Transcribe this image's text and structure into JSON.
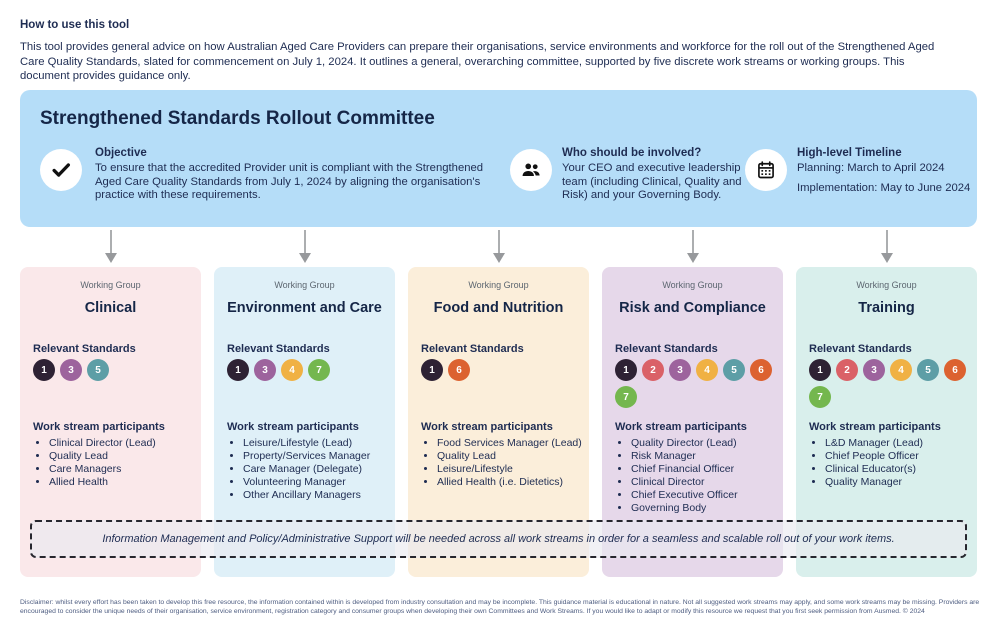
{
  "intro": {
    "title": "How to use this tool",
    "body": "This tool provides general advice on how Australian Aged Care Providers can prepare their organisations, service environments and workforce for the roll out of the Strengthened Aged Care Quality Standards, slated for commencement on July 1, 2024. It outlines a general, overarching committee, supported by five discrete work streams or working groups. This document provides guidance only."
  },
  "committee": {
    "title": "Strengthened Standards Rollout Committee",
    "features": [
      {
        "icon": "check-icon",
        "heading": "Objective",
        "body": "To ensure that the accredited Provider unit is compliant with the Strengthened Aged Care Quality Standards from July 1, 2024 by aligning the organisation's practice with these requirements."
      },
      {
        "icon": "people-icon",
        "heading": "Who should be involved?",
        "body": "Your CEO and executive leadership team (including Clinical, Quality and Risk) and your Governing Body."
      },
      {
        "icon": "calendar-icon",
        "heading": "High-level Timeline",
        "lines": [
          "Planning: March to April 2024",
          "Implementation: May to June 2024"
        ]
      }
    ]
  },
  "working_groups": {
    "group_label": "Working Group",
    "standards_heading": "Relevant Standards",
    "participants_heading": "Work stream participants",
    "standard_colors": {
      "1": "#2e2234",
      "2": "#da6167",
      "3": "#9d639d",
      "4": "#f0b144",
      "5": "#5d9ea6",
      "6": "#dc6230",
      "7": "#74b74e"
    },
    "groups": [
      {
        "title": "Clinical",
        "bg": "#fae8ea",
        "standards": [
          1,
          3,
          5
        ],
        "participants": [
          "Clinical Director (Lead)",
          "Quality Lead",
          "Care Managers",
          "Allied Health"
        ]
      },
      {
        "title": "Environment and Care",
        "bg": "#dff0f8",
        "standards": [
          1,
          3,
          4,
          7
        ],
        "participants": [
          "Leisure/Lifestyle (Lead)",
          "Property/Services Manager",
          "Care Manager (Delegate)",
          "Volunteering Manager",
          "Other Ancillary Managers"
        ]
      },
      {
        "title": "Food and Nutrition",
        "bg": "#fbeeda",
        "standards": [
          1,
          6
        ],
        "participants": [
          "Food Services Manager (Lead)",
          "Quality Lead",
          "Leisure/Lifestyle",
          "Allied Health (i.e. Dietetics)"
        ]
      },
      {
        "title": "Risk and Compliance",
        "bg": "#e6d8ea",
        "standards": [
          1,
          2,
          3,
          4,
          5,
          6,
          7
        ],
        "participants": [
          "Quality Director (Lead)",
          "Risk Manager",
          "Chief Financial Officer",
          "Clinical Director",
          "Chief Executive Officer",
          "Governing Body"
        ]
      },
      {
        "title": "Training",
        "bg": "#d9efec",
        "standards": [
          1,
          2,
          3,
          4,
          5,
          6,
          7
        ],
        "participants": [
          "L&D Manager (Lead)",
          "Chief People Officer",
          "Clinical Educator(s)",
          "Quality Manager"
        ]
      }
    ]
  },
  "banner": {
    "text": "Information Management and Policy/Administrative Support will be needed across all work streams in order for a seamless and scalable roll out of your work items."
  },
  "footer": {
    "disclaimer": "Disclaimer: whilst every effort has been taken to develop this free resource, the information contained within is developed from industry consultation and may be incomplete. This guidance material is educational in nature. Not all suggested work streams may apply, and some work streams may be missing. Providers are encouraged to consider the unique needs of their organisation, service environment, registration category and consumer groups when developing their own Committees and Work Streams. If you would like to adapt or modify this resource we request that you first seek permission from Ausmed. © 2024"
  },
  "colors": {
    "panel_blue": "#b5ddf8",
    "text_navy": "#1e2c52",
    "arrow_gray": "#97999c"
  }
}
